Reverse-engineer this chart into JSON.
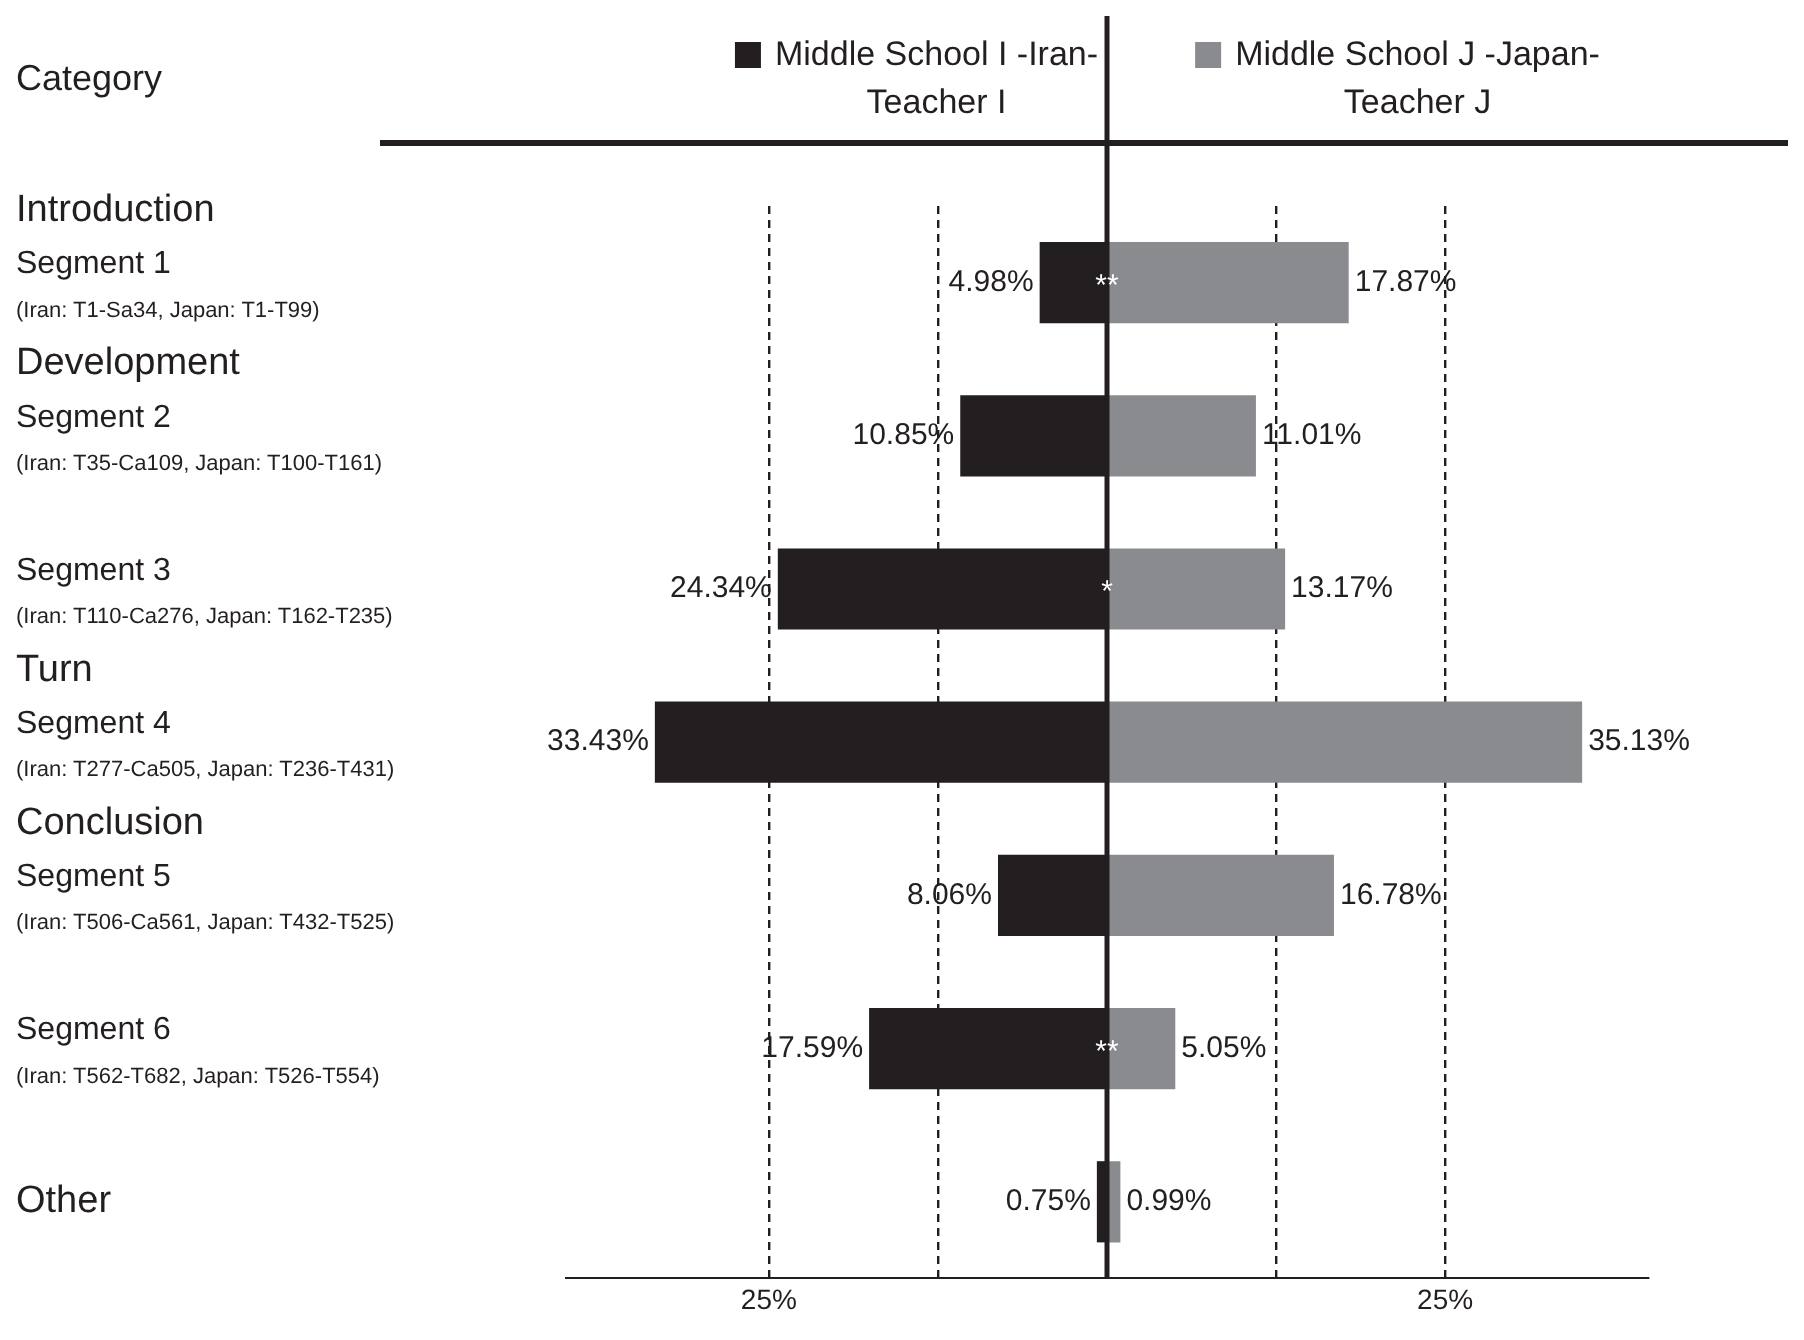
{
  "chart_data": {
    "type": "bar",
    "orientation": "horizontal",
    "ylabel": "Category",
    "categories": [
      "Introduction\nSegment 1\n(Iran: T1-Sa34, Japan: T1-T99)",
      "Development\nSegment 2\n(Iran: T35-Ca109, Japan: T100-T161)",
      "Segment 3\n(Iran: T110-Ca276, Japan: T162-T235)",
      "Turn\nSegment 4\n(Iran: T277-Ca505, Japan: T236-T431)",
      "Conclusion\nSegment 5\n(Iran: T506-Ca561, Japan: T432-T525)",
      "Segment 6\n(Iran: T562-T682, Japan: T526-T554)",
      "Other"
    ],
    "series": [
      {
        "name": "Middle School I -Iran-\nTeacher I",
        "color": "#231f20",
        "values": [
          4.98,
          10.85,
          24.34,
          33.43,
          8.06,
          17.59,
          0.75
        ],
        "base": [
          -4.98,
          -10.85,
          -24.34,
          -33.43,
          -8.06,
          -17.59,
          -0.75
        ],
        "value_labels": [
          "4.98%",
          "10.85%",
          "24.34%",
          "33.43%",
          "8.06%",
          "17.59%",
          "0.75%"
        ]
      },
      {
        "name": "Middle School J -Japan-\nTeacher J",
        "color": "#8a8b8e",
        "values": [
          17.87,
          11.01,
          13.17,
          35.13,
          16.78,
          5.05,
          0.99
        ],
        "value_labels": [
          "17.87%",
          "11.01%",
          "13.17%",
          "35.13%",
          "16.78%",
          "5.05%",
          "0.99%"
        ]
      }
    ],
    "xlim": [
      -40,
      40
    ],
    "xticks": [
      {
        "value": -25,
        "label": "25%"
      },
      {
        "value": -12.5,
        "label": null
      },
      {
        "value": 12.5,
        "label": null
      },
      {
        "value": 25,
        "label": "25%"
      }
    ],
    "grid": "x",
    "line_style": "dashed",
    "legend": "top",
    "ref_lines": [
      {
        "axis": "x",
        "value": 0,
        "color": "#231f20"
      }
    ],
    "annotations": [
      {
        "text": "**",
        "y": "Introduction\nSegment 1\n(Iran: T1-Sa34, Japan: T1-T99)"
      },
      {
        "text": "*",
        "y": "Segment 3\n(Iran: T110-Ca276, Japan: T162-T235)"
      },
      {
        "text": "**",
        "y": "Segment 6\n(Iran: T562-T682, Japan: T526-T554)"
      }
    ]
  }
}
